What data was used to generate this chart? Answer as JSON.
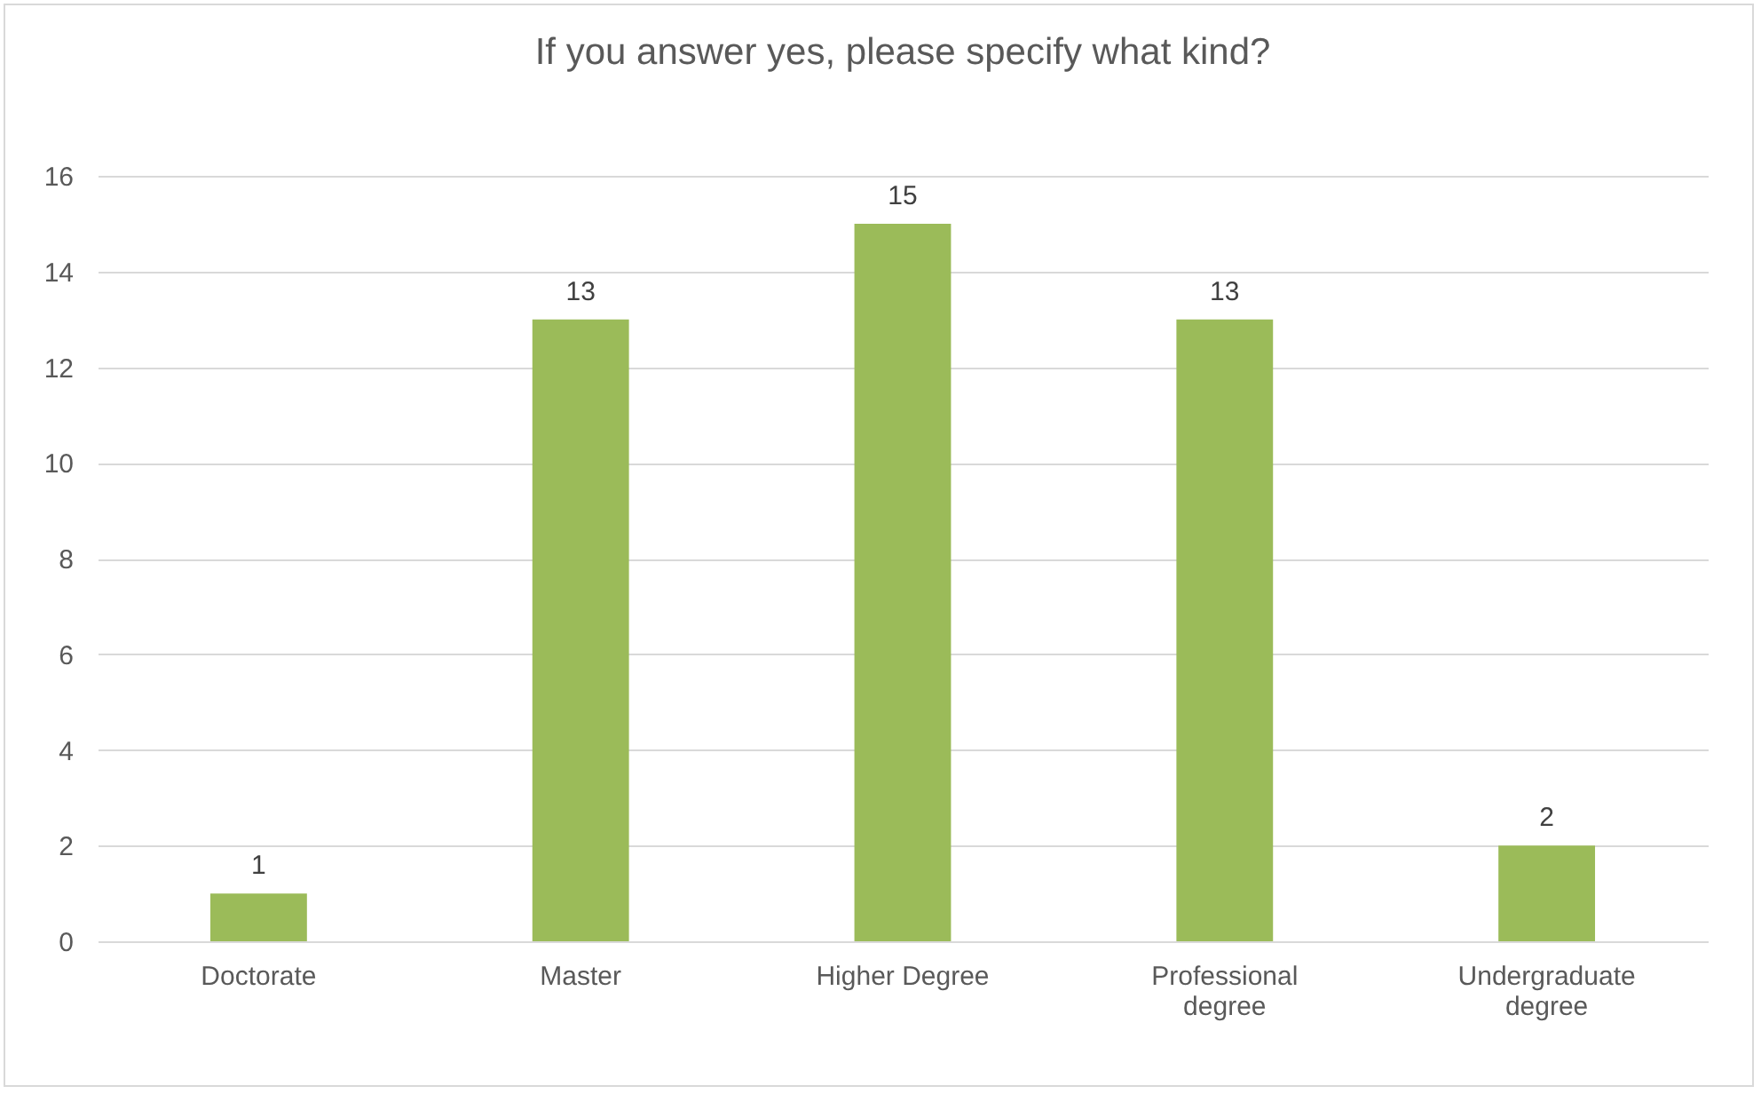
{
  "chart_data": {
    "type": "bar",
    "title": "If you answer yes, please specify what kind?",
    "categories": [
      "Doctorate",
      "Master",
      "Higher Degree",
      "Professional degree",
      "Undergraduate degree"
    ],
    "values": [
      1,
      13,
      15,
      13,
      2
    ],
    "color": "#9bbb59",
    "ylim": [
      0,
      16
    ],
    "yticks": [
      0,
      2,
      4,
      6,
      8,
      10,
      12,
      14,
      16
    ],
    "grid": "y",
    "data_labels": true
  }
}
